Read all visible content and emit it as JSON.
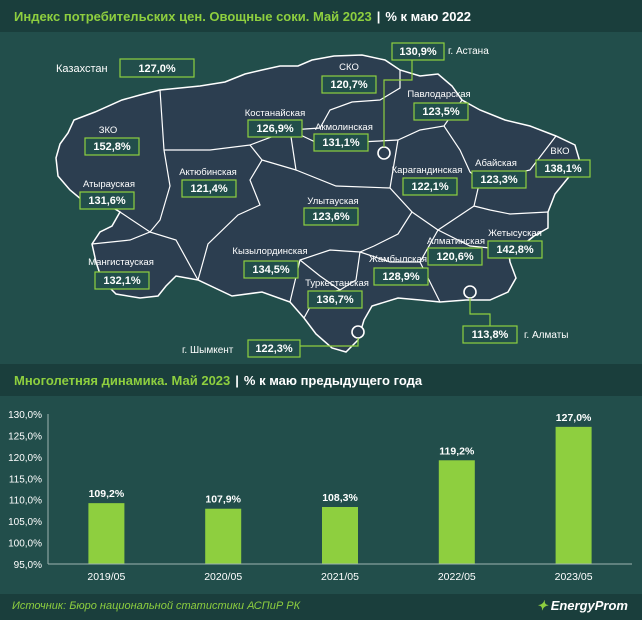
{
  "map_header": {
    "title": "Индекс потребительских цен. Овощные соки. Май 2023",
    "subtitle": "% к маю 2022"
  },
  "chart_header": {
    "title": "Многолетняя динамика. Май 2023",
    "subtitle": "% к маю предыдущего года"
  },
  "colors": {
    "accent": "#8ecf3f",
    "background": "#224e4b",
    "header": "#1a3e3c",
    "map_fill": "#2c3e50",
    "bar": "#8ecf3f"
  },
  "map": {
    "country": {
      "label": "Казахстан",
      "value": "127,0%"
    },
    "regions": [
      {
        "name": "СКО",
        "value": "120,7%"
      },
      {
        "name": "Павлодарская",
        "value": "123,5%"
      },
      {
        "name": "Костанайская",
        "value": "126,9%"
      },
      {
        "name": "Акмолинская",
        "value": "131,1%"
      },
      {
        "name": "ЗКО",
        "value": "152,8%"
      },
      {
        "name": "Актюбинская",
        "value": "121,4%"
      },
      {
        "name": "Атырауская",
        "value": "131,6%"
      },
      {
        "name": "Карагандинская",
        "value": "122,1%"
      },
      {
        "name": "Абайская",
        "value": "123,3%"
      },
      {
        "name": "ВКО",
        "value": "138,1%"
      },
      {
        "name": "Улытауская",
        "value": "123,6%"
      },
      {
        "name": "Мангистауская",
        "value": "132,1%"
      },
      {
        "name": "Кызылординская",
        "value": "134,5%"
      },
      {
        "name": "Жамбылская",
        "value": "128,9%"
      },
      {
        "name": "Алматинская",
        "value": "120,6%"
      },
      {
        "name": "Жетысуская",
        "value": "142,8%"
      },
      {
        "name": "Туркестанская",
        "value": "136,7%"
      }
    ],
    "cities": [
      {
        "name": "г. Астана",
        "value": "130,9%"
      },
      {
        "name": "г. Алматы",
        "value": "113,8%"
      },
      {
        "name": "г. Шымкент",
        "value": "122,3%"
      }
    ]
  },
  "chart_data": {
    "type": "bar",
    "title": "Многолетняя динамика. Май 2023",
    "subtitle": "% к маю предыдущего года",
    "categories": [
      "2019/05",
      "2020/05",
      "2021/05",
      "2022/05",
      "2023/05"
    ],
    "values": [
      109.2,
      107.9,
      108.3,
      119.2,
      127.0
    ],
    "value_labels": [
      "109,2%",
      "107,9%",
      "108,3%",
      "119,2%",
      "127,0%"
    ],
    "ylim": [
      95,
      130
    ],
    "yticks": [
      95,
      100,
      105,
      110,
      115,
      120,
      125,
      130
    ],
    "ytick_labels": [
      "95,0%",
      "100,0%",
      "105,0%",
      "110,0%",
      "115,0%",
      "120,0%",
      "125,0%",
      "130,0%"
    ],
    "grid": false,
    "legend": "none",
    "xlabel": "",
    "ylabel": ""
  },
  "footer": {
    "source": "Источник: Бюро национальной статистики АСПиР РК",
    "brand": "EnergyProm"
  }
}
